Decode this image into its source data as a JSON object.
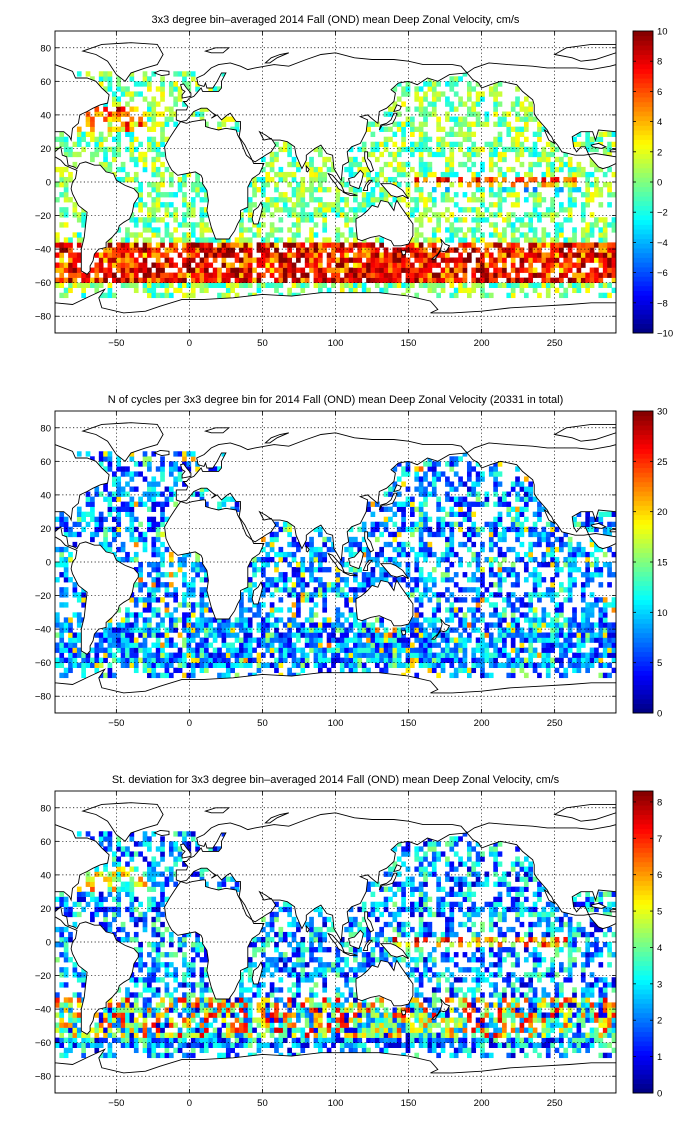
{
  "figure": {
    "colormap_name": "jet",
    "panels": [
      {
        "id": "mean"
      },
      {
        "id": "count"
      },
      {
        "id": "std"
      }
    ]
  },
  "chart_data": [
    {
      "type": "heatmap",
      "title": "3x3 degree bin–averaged 2014 Fall (OND) mean Deep Zonal Velocity, cm/s",
      "xlabel": "",
      "ylabel": "",
      "xlim": [
        -92,
        292
      ],
      "ylim": [
        -90,
        90
      ],
      "x_ticks": [
        -50,
        0,
        50,
        100,
        150,
        200,
        250
      ],
      "y_ticks": [
        -80,
        -60,
        -40,
        -20,
        0,
        20,
        40,
        60,
        80
      ],
      "grid": true,
      "colorbar": {
        "min": -10,
        "max": 10,
        "ticks": [
          -10,
          -8,
          -6,
          -4,
          -2,
          0,
          2,
          4,
          6,
          8,
          10
        ],
        "placement": "right"
      },
      "bin_size_deg": 3,
      "field": "mean_velocity"
    },
    {
      "type": "heatmap",
      "title": "N of cycles per 3x3 degree bin for 2014 Fall (OND) mean Deep Zonal Velocity (20331 in total)",
      "xlabel": "",
      "ylabel": "",
      "xlim": [
        -92,
        292
      ],
      "ylim": [
        -90,
        90
      ],
      "x_ticks": [
        -50,
        0,
        50,
        100,
        150,
        200,
        250
      ],
      "y_ticks": [
        -80,
        -60,
        -40,
        -20,
        0,
        20,
        40,
        60,
        80
      ],
      "grid": true,
      "colorbar": {
        "min": 0,
        "max": 30,
        "ticks": [
          0,
          5,
          10,
          15,
          20,
          25,
          30
        ],
        "placement": "right"
      },
      "bin_size_deg": 3,
      "total_cycles": 20331,
      "field": "count"
    },
    {
      "type": "heatmap",
      "title": "St. deviation for 3x3 degree bin–averaged 2014 Fall (OND) mean Deep Zonal Velocity, cm/s",
      "xlabel": "",
      "ylabel": "",
      "xlim": [
        -92,
        292
      ],
      "ylim": [
        -90,
        90
      ],
      "x_ticks": [
        -50,
        0,
        50,
        100,
        150,
        200,
        250
      ],
      "y_ticks": [
        -80,
        -60,
        -40,
        -20,
        0,
        20,
        40,
        60,
        80
      ],
      "grid": true,
      "colorbar": {
        "min": 0,
        "max": 8.3,
        "ticks": [
          0,
          1,
          2,
          3,
          4,
          5,
          6,
          7,
          8
        ],
        "placement": "right"
      },
      "bin_size_deg": 3,
      "field": "std"
    }
  ]
}
